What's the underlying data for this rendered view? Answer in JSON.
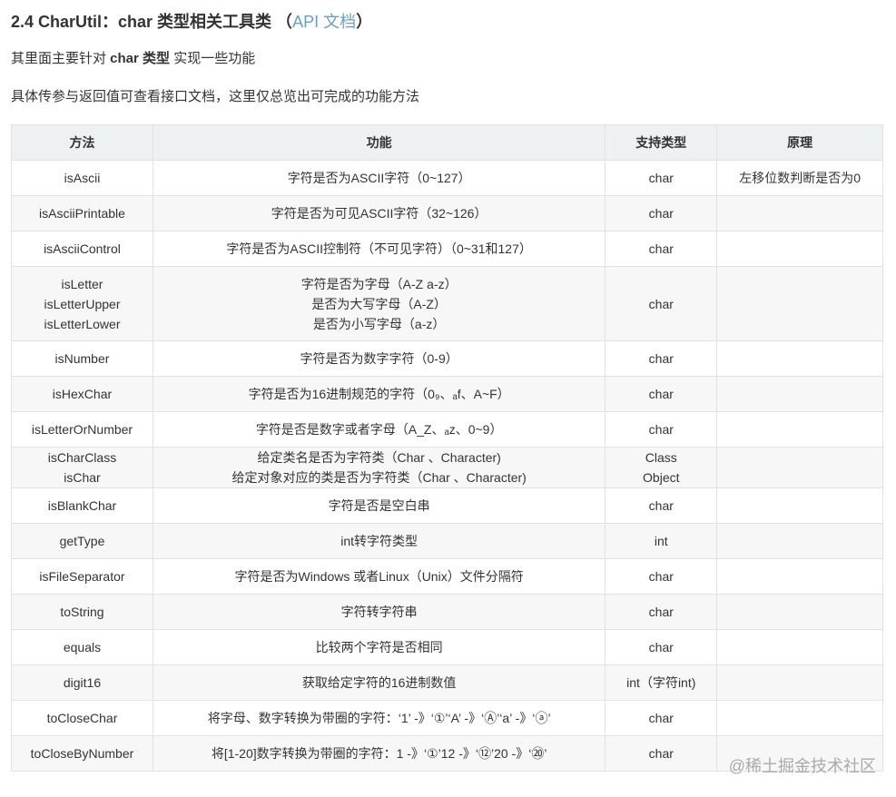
{
  "heading": {
    "prefix": "2.4 CharUtil：char 类型相关工具类 （",
    "link": "API 文档",
    "suffix": "）"
  },
  "intro": {
    "pre": "其里面主要针对 ",
    "bold": "char 类型",
    "post": " 实现一些功能"
  },
  "note": "具体传参与返回值可查看接口文档，这里仅总览出可完成的功能方法",
  "table": {
    "headers": [
      "方法",
      "功能",
      "支持类型",
      "原理"
    ],
    "rows": [
      {
        "method": [
          "isAscii"
        ],
        "func": [
          "字符是否为ASCII字符（0~127）"
        ],
        "type": [
          "char"
        ],
        "principle": "左移位数判断是否为0"
      },
      {
        "method": [
          "isAsciiPrintable"
        ],
        "func": [
          "字符是否为可见ASCII字符（32~126）"
        ],
        "type": [
          "char"
        ],
        "principle": ""
      },
      {
        "method": [
          "isAsciiControl"
        ],
        "func": [
          "字符是否为ASCII控制符（不可见字符）（0~31和127）"
        ],
        "type": [
          "char"
        ],
        "principle": ""
      },
      {
        "method": [
          "isLetter",
          "isLetterUpper",
          "isLetterLower"
        ],
        "func": [
          "字符是否为字母（A-Z a-z）",
          "是否为大写字母（A-Z）",
          "是否为小写字母（a-z）"
        ],
        "type": [
          "char"
        ],
        "principle": ""
      },
      {
        "method": [
          "isNumber"
        ],
        "func": [
          "字符是否为数字字符（0-9）"
        ],
        "type": [
          "char"
        ],
        "principle": ""
      },
      {
        "method": [
          "isHexChar"
        ],
        "func": [
          "字符是否为16进制规范的字符（0₉、ₐf、A~F）"
        ],
        "type": [
          "char"
        ],
        "principle": ""
      },
      {
        "method": [
          "isLetterOrNumber"
        ],
        "func": [
          "字符是否是数字或者字母（A_Z、ₐz、0~9）"
        ],
        "type": [
          "char"
        ],
        "principle": ""
      },
      {
        "method": [
          "isCharClass",
          "isChar"
        ],
        "func": [
          "给定类名是否为字符类（Char 、Character)",
          "给定对象对应的类是否为字符类（Char 、Character)"
        ],
        "type": [
          "Class",
          "Object"
        ],
        "principle": ""
      },
      {
        "method": [
          "isBlankChar"
        ],
        "func": [
          "字符是否是空白串"
        ],
        "type": [
          "char"
        ],
        "principle": ""
      },
      {
        "method": [
          "getType"
        ],
        "func": [
          "int转字符类型"
        ],
        "type": [
          "int"
        ],
        "principle": ""
      },
      {
        "method": [
          "isFileSeparator"
        ],
        "func": [
          "字符是否为Windows 或者Linux（Unix）文件分隔符"
        ],
        "type": [
          "char"
        ],
        "principle": ""
      },
      {
        "method": [
          "toString"
        ],
        "func": [
          "字符转字符串"
        ],
        "type": [
          "char"
        ],
        "principle": ""
      },
      {
        "method": [
          "equals"
        ],
        "func": [
          "比较两个字符是否相同"
        ],
        "type": [
          "char"
        ],
        "principle": ""
      },
      {
        "method": [
          "digit16"
        ],
        "func": [
          "获取给定字符的16进制数值"
        ],
        "type": [
          "int（字符int)"
        ],
        "principle": ""
      },
      {
        "method": [
          "toCloseChar"
        ],
        "func": [
          "将字母、数字转换为带圈的字符：‘1’ -》‘①’‘A’ -》‘Ⓐ’‘a’ -》‘ⓐ’"
        ],
        "type": [
          "char"
        ],
        "principle": ""
      },
      {
        "method": [
          "toCloseByNumber"
        ],
        "func": [
          "将[1-20]数字转换为带圈的字符：1 -》‘①’12 -》‘⑫’20 -》‘⑳’"
        ],
        "type": [
          "char"
        ],
        "principle": ""
      }
    ]
  },
  "watermark": "@稀土掘金技术社区",
  "colors": {
    "link": "#6a9fbf",
    "header_bg": "#eef1f2"
  }
}
